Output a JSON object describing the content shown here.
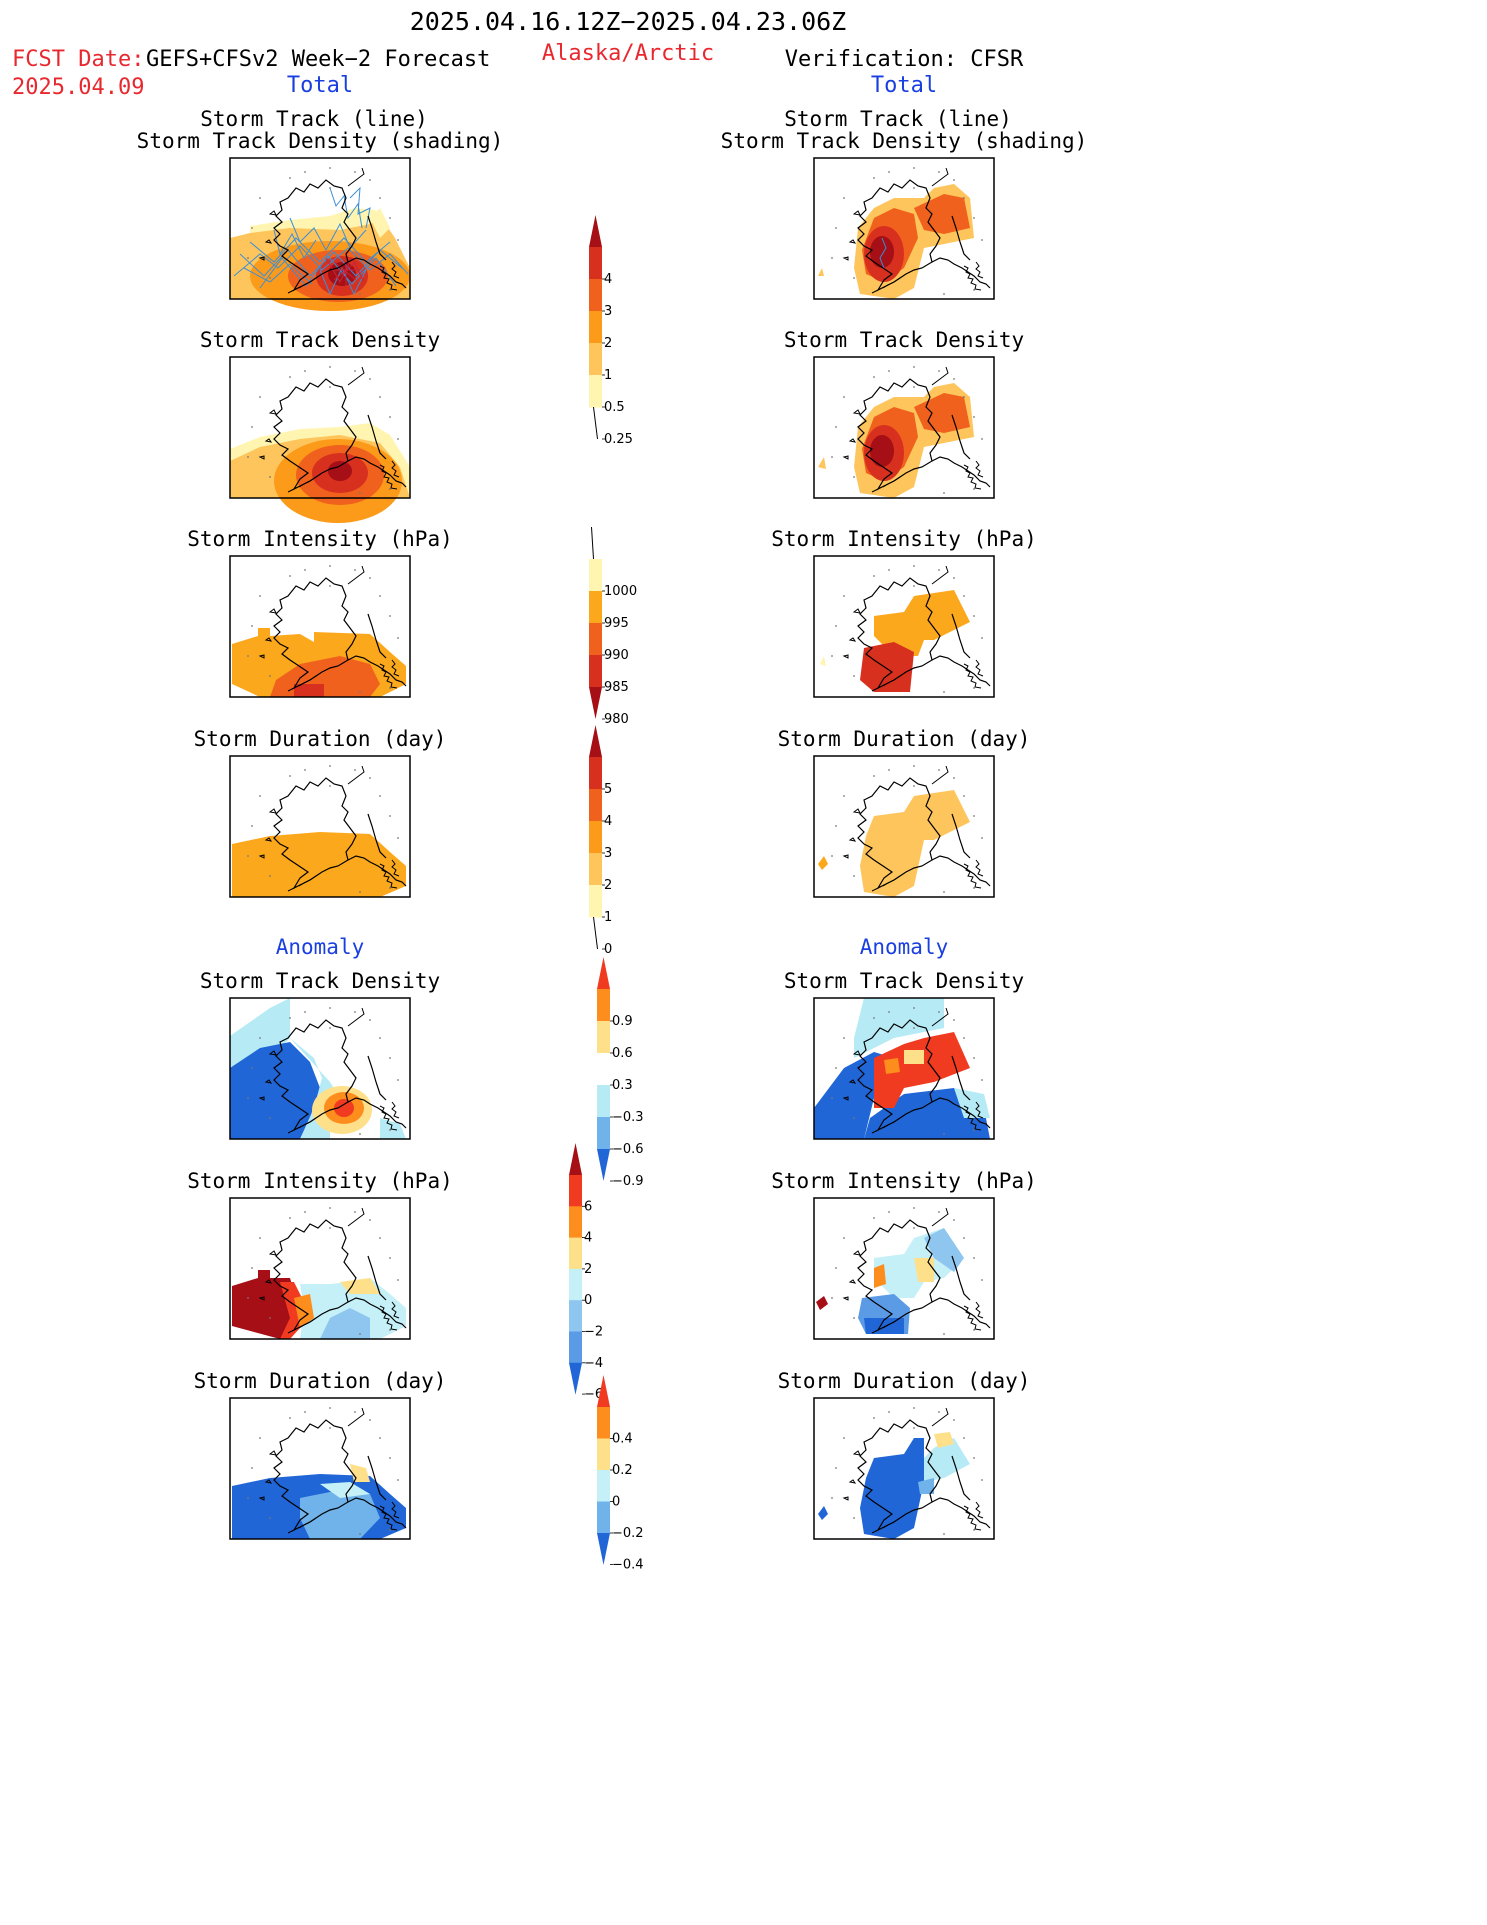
{
  "header": {
    "date_range": "2025.04.16.12Z−2025.04.23.06Z",
    "fcst_label": "FCST Date:",
    "fcst_model": "GEFS+CFSv2 Week−2 Forecast",
    "fcst_date": "2025.04.09",
    "region": "Alaska/Arctic",
    "verification": "Verification: CFSR"
  },
  "columns": {
    "left_total": "Total",
    "right_total": "Total",
    "left_anomaly": "Anomaly",
    "right_anomaly": "Anomaly"
  },
  "panel_titles": {
    "track_line": "Storm Track (line)",
    "track_shading": "Storm Track Density (shading)",
    "density": "Storm Track Density",
    "intensity": "Storm Intensity (hPa)",
    "duration": "Storm Duration (day)"
  },
  "colorbars": [
    {
      "id": "density-total",
      "labels": [
        "4",
        "3",
        "2",
        "1",
        "0.5",
        "0.25"
      ],
      "colors": [
        "#a50f15",
        "#d7301f",
        "#f0611e",
        "#fc9a1a",
        "#fdc55b",
        "#fff5b0"
      ]
    },
    {
      "id": "intensity-total",
      "labels": [
        "1000",
        "995",
        "990",
        "985",
        "980"
      ],
      "colors": [
        "#fff5b0",
        "#fca81c",
        "#f0611e",
        "#d7301f",
        "#a50f15"
      ]
    },
    {
      "id": "duration-total",
      "labels": [
        "5",
        "4",
        "3",
        "2",
        "1",
        "0"
      ],
      "colors": [
        "#a50f15",
        "#d7301f",
        "#f0611e",
        "#fc9a1a",
        "#fdc55b",
        "#fff5b0"
      ]
    },
    {
      "id": "density-anom",
      "labels": [
        "0.9",
        "0.6",
        "0.3",
        "−0.3",
        "−0.6",
        "−0.9"
      ],
      "colors": [
        "#f03b20",
        "#fd8d1c",
        "#fee08b",
        "#ffffff",
        "#b6ebf6",
        "#6fb3ea",
        "#2166d6"
      ]
    },
    {
      "id": "intensity-anom",
      "labels": [
        "6",
        "4",
        "2",
        "0",
        "−2",
        "−4",
        "−6"
      ],
      "colors": [
        "#a50f15",
        "#f03b20",
        "#fd8d1c",
        "#fee08b",
        "#c6f0f8",
        "#8ec6f0",
        "#5b9be6",
        "#2166d6"
      ]
    },
    {
      "id": "duration-anom",
      "labels": [
        "0.4",
        "0.2",
        "0",
        "−0.2",
        "−0.4"
      ],
      "colors": [
        "#f03b20",
        "#fd8d1c",
        "#fee08b",
        "#c6f0f8",
        "#6fb3ea",
        "#2166d6"
      ]
    }
  ]
}
